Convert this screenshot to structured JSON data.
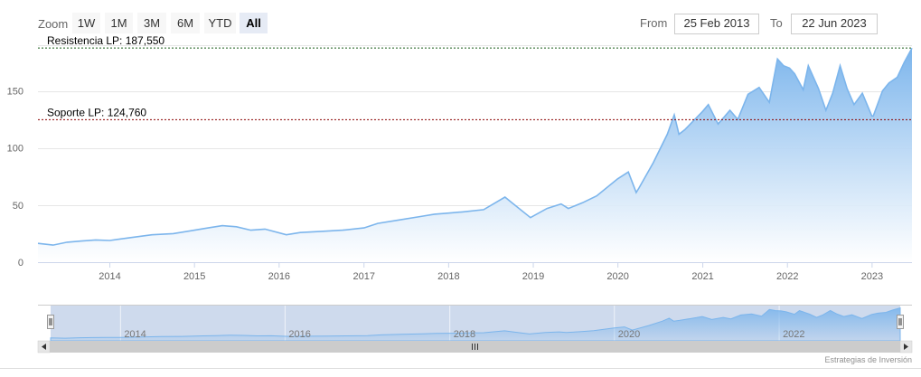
{
  "range_selector": {
    "zoom_label": "Zoom",
    "buttons": [
      {
        "label": "1W",
        "selected": false
      },
      {
        "label": "1M",
        "selected": false
      },
      {
        "label": "3M",
        "selected": false
      },
      {
        "label": "6M",
        "selected": false
      },
      {
        "label": "YTD",
        "selected": false
      },
      {
        "label": "All",
        "selected": true
      }
    ],
    "from_label": "From",
    "from_value": "25 Feb 2013",
    "to_label": "To",
    "to_value": "22 Jun 2023"
  },
  "credits": "Estrategias de Inversión",
  "colors": {
    "series_line": "#7cb5ec",
    "area_top": "#7cb5ec",
    "area_bottom": "#ffffff",
    "resistance_line": "#1a5e1a",
    "support_line": "#8b0000",
    "selected_button": "#e6ebf5",
    "navigator_mask": "#c6d3ea"
  },
  "chart_data": {
    "type": "area",
    "title": "",
    "xlabel": "",
    "ylabel": "",
    "x_range": [
      "2013-02-25",
      "2023-06-22"
    ],
    "ylim": [
      0,
      190
    ],
    "y_ticks": [
      "0",
      "50",
      "100",
      "150"
    ],
    "y_tick_values": [
      0,
      50,
      100,
      150
    ],
    "x_ticks": [
      "2014",
      "2015",
      "2016",
      "2017",
      "2018",
      "2019",
      "2020",
      "2021",
      "2022",
      "2023"
    ],
    "navigator_ticks": [
      "2014",
      "2016",
      "2018",
      "2020",
      "2022"
    ],
    "grid": true,
    "legend": "none",
    "plot_lines": [
      {
        "label": "Resistencia LP: 187,550",
        "value": 187.55,
        "style": "dashed",
        "color": "#1a5e1a"
      },
      {
        "label": "Soporte LP: 124,760",
        "value": 124.76,
        "style": "dashed",
        "color": "#8b0000"
      }
    ],
    "series": [
      {
        "x": [
          "2013-02-25",
          "2013-05-01",
          "2013-07-01",
          "2013-09-01",
          "2013-11-01",
          "2014-01-01",
          "2014-04-01",
          "2014-07-01",
          "2014-10-01",
          "2015-01-01",
          "2015-03-01",
          "2015-05-01",
          "2015-07-01",
          "2015-09-01",
          "2015-11-01",
          "2016-02-01",
          "2016-04-01",
          "2016-07-01",
          "2016-10-01",
          "2017-01-01",
          "2017-03-01",
          "2017-06-01",
          "2017-09-01",
          "2017-11-01",
          "2018-01-01",
          "2018-03-01",
          "2018-06-01",
          "2018-09-01",
          "2018-10-01",
          "2018-12-20",
          "2019-03-01",
          "2019-05-01",
          "2019-06-01",
          "2019-08-01",
          "2019-10-01",
          "2019-12-31",
          "2020-02-15",
          "2020-03-20",
          "2020-04-01",
          "2020-06-01",
          "2020-08-01",
          "2020-08-31",
          "2020-09-20",
          "2020-10-15",
          "2020-12-31",
          "2021-01-25",
          "2021-03-08",
          "2021-04-28",
          "2021-06-01",
          "2021-07-15",
          "2021-09-01",
          "2021-10-15",
          "2021-11-19",
          "2021-12-15",
          "2022-01-10",
          "2022-02-01",
          "2022-03-10",
          "2022-04-01",
          "2022-05-15",
          "2022-06-16",
          "2022-07-15",
          "2022-08-16",
          "2022-09-15",
          "2022-10-15",
          "2022-11-20",
          "2022-12-31",
          "2023-01-06",
          "2023-02-15",
          "2023-03-15",
          "2023-04-20",
          "2023-05-20",
          "2023-06-22"
        ],
        "values": [
          16.5,
          15.0,
          17.5,
          18.5,
          19.5,
          19.0,
          21.5,
          24.0,
          25.0,
          28.0,
          30.0,
          32.0,
          31.0,
          28.0,
          29.0,
          24.0,
          26.0,
          27.0,
          28.0,
          30.0,
          34.0,
          37.0,
          40.0,
          42.0,
          43.0,
          44.0,
          46.0,
          57.0,
          52.0,
          39.0,
          47.0,
          51.0,
          47.0,
          52.0,
          58.0,
          73.0,
          79.0,
          61.0,
          65.0,
          87.0,
          112.0,
          129.0,
          112.0,
          116.0,
          132.0,
          138.0,
          121.0,
          133.0,
          125.0,
          147.0,
          153.0,
          140.0,
          178.0,
          172.0,
          170.0,
          165.0,
          151.0,
          172.0,
          152.0,
          133.0,
          148.0,
          172.0,
          152.0,
          138.0,
          148.0,
          128.0,
          128.0,
          150.0,
          157.0,
          162.0,
          175.0,
          187.5
        ]
      }
    ]
  }
}
